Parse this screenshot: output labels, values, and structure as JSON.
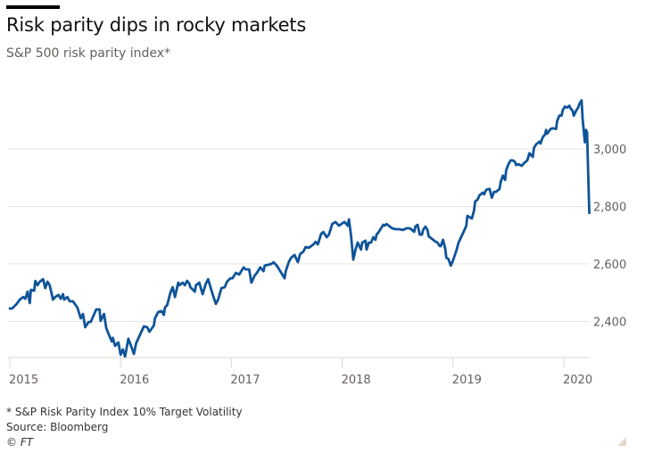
{
  "header": {
    "title": "Risk parity dips in rocky markets",
    "subtitle": "S&P 500 risk parity index*"
  },
  "footer": {
    "note": "* S&P Risk Parity Index 10% Target Volatility",
    "source": "Source: Bloomberg",
    "credit": "© FT"
  },
  "colors": {
    "line": "#0f5499",
    "grid": "#e9e4df",
    "axis": "#ddd5cc",
    "text": "#66605c"
  },
  "chart_data": {
    "type": "line",
    "title": "Risk parity dips in rocky markets",
    "subtitle": "S&P 500 risk parity index*",
    "xlabel": "",
    "ylabel": "",
    "xlim": [
      2015,
      2020.2
    ],
    "ylim": [
      2270,
      3200
    ],
    "grid": true,
    "y_axis_position": "right",
    "yticks": [
      2400,
      2600,
      2800,
      3000
    ],
    "ytick_labels": [
      "2,400",
      "2,600",
      "2,800",
      "3,000"
    ],
    "xticks": [
      2015,
      2016,
      2017,
      2018,
      2019,
      2020
    ],
    "xtick_labels": [
      "2015",
      "2016",
      "2017",
      "2018",
      "2019",
      "2020"
    ],
    "series": [
      {
        "name": "S&P Risk Parity Index 10% Target Volatility",
        "points": [
          [
            2014.99,
            2445
          ],
          [
            2015.02,
            2445
          ],
          [
            2015.06,
            2460
          ],
          [
            2015.09,
            2476
          ],
          [
            2015.12,
            2485
          ],
          [
            2015.14,
            2479
          ],
          [
            2015.16,
            2504
          ],
          [
            2015.18,
            2464
          ],
          [
            2015.19,
            2510
          ],
          [
            2015.22,
            2507
          ],
          [
            2015.23,
            2541
          ],
          [
            2015.25,
            2526
          ],
          [
            2015.27,
            2538
          ],
          [
            2015.3,
            2547
          ],
          [
            2015.32,
            2516
          ],
          [
            2015.34,
            2538
          ],
          [
            2015.36,
            2526
          ],
          [
            2015.39,
            2476
          ],
          [
            2015.41,
            2485
          ],
          [
            2015.44,
            2492
          ],
          [
            2015.46,
            2479
          ],
          [
            2015.48,
            2495
          ],
          [
            2015.49,
            2476
          ],
          [
            2015.52,
            2485
          ],
          [
            2015.54,
            2470
          ],
          [
            2015.57,
            2470
          ],
          [
            2015.61,
            2448
          ],
          [
            2015.64,
            2411
          ],
          [
            2015.66,
            2426
          ],
          [
            2015.68,
            2380
          ],
          [
            2015.71,
            2398
          ],
          [
            2015.73,
            2398
          ],
          [
            2015.77,
            2433
          ],
          [
            2015.78,
            2442
          ],
          [
            2015.81,
            2442
          ],
          [
            2015.82,
            2402
          ],
          [
            2015.85,
            2426
          ],
          [
            2015.87,
            2377
          ],
          [
            2015.89,
            2358
          ],
          [
            2015.92,
            2330
          ],
          [
            2015.93,
            2343
          ],
          [
            2015.95,
            2315
          ],
          [
            2015.98,
            2327
          ],
          [
            2016.0,
            2284
          ],
          [
            2016.02,
            2303
          ],
          [
            2016.04,
            2278
          ],
          [
            2016.07,
            2340
          ],
          [
            2016.1,
            2309
          ],
          [
            2016.12,
            2287
          ],
          [
            2016.14,
            2324
          ],
          [
            2016.18,
            2358
          ],
          [
            2016.21,
            2383
          ],
          [
            2016.24,
            2380
          ],
          [
            2016.26,
            2364
          ],
          [
            2016.3,
            2386
          ],
          [
            2016.31,
            2411
          ],
          [
            2016.34,
            2433
          ],
          [
            2016.37,
            2436
          ],
          [
            2016.39,
            2423
          ],
          [
            2016.4,
            2448
          ],
          [
            2016.42,
            2457
          ],
          [
            2016.45,
            2501
          ],
          [
            2016.47,
            2519
          ],
          [
            2016.49,
            2485
          ],
          [
            2016.52,
            2535
          ],
          [
            2016.53,
            2526
          ],
          [
            2016.56,
            2535
          ],
          [
            2016.58,
            2526
          ],
          [
            2016.6,
            2541
          ],
          [
            2016.62,
            2532
          ],
          [
            2016.63,
            2519
          ],
          [
            2016.67,
            2504
          ],
          [
            2016.68,
            2526
          ],
          [
            2016.71,
            2535
          ],
          [
            2016.74,
            2495
          ],
          [
            2016.77,
            2532
          ],
          [
            2016.79,
            2547
          ],
          [
            2016.83,
            2495
          ],
          [
            2016.86,
            2461
          ],
          [
            2016.88,
            2476
          ],
          [
            2016.91,
            2516
          ],
          [
            2016.94,
            2519
          ],
          [
            2016.96,
            2538
          ],
          [
            2016.99,
            2550
          ],
          [
            2017.01,
            2550
          ],
          [
            2017.04,
            2569
          ],
          [
            2017.07,
            2563
          ],
          [
            2017.11,
            2588
          ],
          [
            2017.13,
            2581
          ],
          [
            2017.16,
            2581
          ],
          [
            2017.18,
            2535
          ],
          [
            2017.21,
            2560
          ],
          [
            2017.23,
            2569
          ],
          [
            2017.26,
            2588
          ],
          [
            2017.29,
            2575
          ],
          [
            2017.3,
            2594
          ],
          [
            2017.33,
            2597
          ],
          [
            2017.36,
            2600
          ],
          [
            2017.38,
            2606
          ],
          [
            2017.41,
            2594
          ],
          [
            2017.45,
            2569
          ],
          [
            2017.48,
            2550
          ],
          [
            2017.49,
            2575
          ],
          [
            2017.52,
            2609
          ],
          [
            2017.54,
            2622
          ],
          [
            2017.57,
            2631
          ],
          [
            2017.6,
            2606
          ],
          [
            2017.62,
            2634
          ],
          [
            2017.65,
            2643
          ],
          [
            2017.67,
            2659
          ],
          [
            2017.7,
            2656
          ],
          [
            2017.74,
            2668
          ],
          [
            2017.76,
            2677
          ],
          [
            2017.78,
            2668
          ],
          [
            2017.81,
            2705
          ],
          [
            2017.83,
            2711
          ],
          [
            2017.86,
            2693
          ],
          [
            2017.88,
            2702
          ],
          [
            2017.91,
            2739
          ],
          [
            2017.94,
            2746
          ],
          [
            2017.97,
            2733
          ],
          [
            2018.02,
            2746
          ],
          [
            2018.05,
            2733
          ],
          [
            2018.06,
            2755
          ],
          [
            2018.08,
            2699
          ],
          [
            2018.1,
            2615
          ],
          [
            2018.12,
            2650
          ],
          [
            2018.14,
            2674
          ],
          [
            2018.17,
            2650
          ],
          [
            2018.18,
            2674
          ],
          [
            2018.21,
            2681
          ],
          [
            2018.22,
            2650
          ],
          [
            2018.24,
            2674
          ],
          [
            2018.26,
            2674
          ],
          [
            2018.28,
            2693
          ],
          [
            2018.3,
            2684
          ],
          [
            2018.31,
            2702
          ],
          [
            2018.33,
            2711
          ],
          [
            2018.35,
            2724
          ],
          [
            2018.37,
            2736
          ],
          [
            2018.38,
            2733
          ],
          [
            2018.4,
            2739
          ],
          [
            2018.42,
            2733
          ],
          [
            2018.45,
            2724
          ],
          [
            2018.48,
            2721
          ],
          [
            2018.51,
            2721
          ],
          [
            2018.55,
            2718
          ],
          [
            2018.58,
            2724
          ],
          [
            2018.61,
            2724
          ],
          [
            2018.63,
            2718
          ],
          [
            2018.65,
            2712
          ],
          [
            2018.66,
            2730
          ],
          [
            2018.68,
            2736
          ],
          [
            2018.7,
            2702
          ],
          [
            2018.72,
            2702
          ],
          [
            2018.73,
            2718
          ],
          [
            2018.75,
            2730
          ],
          [
            2018.77,
            2718
          ],
          [
            2018.78,
            2696
          ],
          [
            2018.81,
            2687
          ],
          [
            2018.84,
            2678
          ],
          [
            2018.86,
            2674
          ],
          [
            2018.88,
            2662
          ],
          [
            2018.89,
            2662
          ],
          [
            2018.91,
            2684
          ],
          [
            2018.93,
            2653
          ],
          [
            2018.94,
            2622
          ],
          [
            2018.96,
            2616
          ],
          [
            2018.98,
            2594
          ],
          [
            2019.0,
            2612
          ],
          [
            2019.03,
            2646
          ],
          [
            2019.05,
            2674
          ],
          [
            2019.08,
            2699
          ],
          [
            2019.1,
            2715
          ],
          [
            2019.12,
            2733
          ],
          [
            2019.13,
            2767
          ],
          [
            2019.17,
            2758
          ],
          [
            2019.19,
            2786
          ],
          [
            2019.2,
            2817
          ],
          [
            2019.22,
            2823
          ],
          [
            2019.24,
            2839
          ],
          [
            2019.27,
            2848
          ],
          [
            2019.28,
            2842
          ],
          [
            2019.3,
            2858
          ],
          [
            2019.33,
            2861
          ],
          [
            2019.35,
            2830
          ],
          [
            2019.37,
            2851
          ],
          [
            2019.39,
            2851
          ],
          [
            2019.42,
            2861
          ],
          [
            2019.43,
            2885
          ],
          [
            2019.45,
            2907
          ],
          [
            2019.47,
            2892
          ],
          [
            2019.48,
            2926
          ],
          [
            2019.5,
            2947
          ],
          [
            2019.52,
            2960
          ],
          [
            2019.54,
            2960
          ],
          [
            2019.56,
            2954
          ],
          [
            2019.57,
            2944
          ],
          [
            2019.59,
            2947
          ],
          [
            2019.62,
            2941
          ],
          [
            2019.64,
            2950
          ],
          [
            2019.67,
            2960
          ],
          [
            2019.69,
            2985
          ],
          [
            2019.72,
            2972
          ],
          [
            2019.73,
            3003
          ],
          [
            2019.75,
            3016
          ],
          [
            2019.78,
            3025
          ],
          [
            2019.79,
            3019
          ],
          [
            2019.81,
            3041
          ],
          [
            2019.83,
            3050
          ],
          [
            2019.84,
            3066
          ],
          [
            2019.85,
            3053
          ],
          [
            2019.88,
            3069
          ],
          [
            2019.9,
            3072
          ],
          [
            2019.93,
            3069
          ],
          [
            2019.94,
            3097
          ],
          [
            2019.96,
            3116
          ],
          [
            2019.98,
            3116
          ],
          [
            2019.99,
            3135
          ],
          [
            2020.01,
            3147
          ],
          [
            2020.03,
            3144
          ],
          [
            2020.05,
            3150
          ],
          [
            2020.06,
            3141
          ],
          [
            2020.08,
            3132
          ],
          [
            2020.09,
            3116
          ],
          [
            2020.11,
            3132
          ],
          [
            2020.13,
            3144
          ],
          [
            2020.14,
            3156
          ],
          [
            2020.16,
            3169
          ],
          [
            2020.17,
            3104
          ],
          [
            2020.19,
            3023
          ],
          [
            2020.2,
            3066
          ],
          [
            2020.21,
            3057
          ],
          [
            2020.22,
            2916
          ],
          [
            2020.23,
            2774
          ]
        ]
      }
    ]
  }
}
